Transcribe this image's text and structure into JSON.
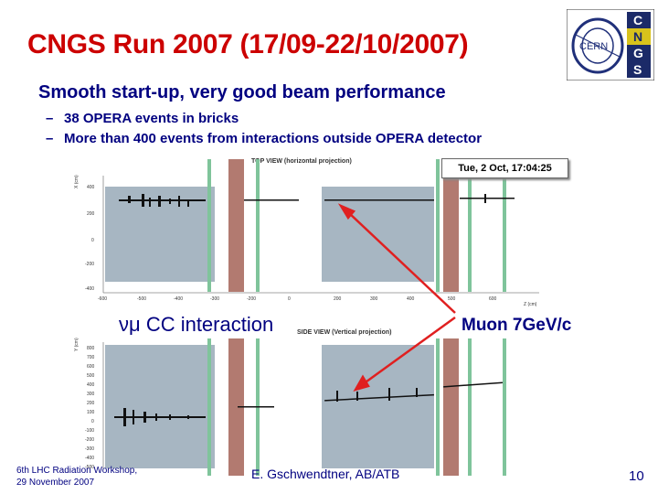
{
  "slide": {
    "title": "CNGS Run 2007 (17/09-22/10/2007)",
    "subtitle": "Smooth start-up, very good beam performance",
    "bullets": [
      "38 OPERA events in bricks",
      "More than 400 events from interactions outside OPERA detector"
    ],
    "bullet_dash": "–",
    "logo": {
      "text": "CERN",
      "letters": [
        "C",
        "N",
        "G",
        "S"
      ]
    }
  },
  "figure": {
    "timestamp": "Tue, 2 Oct, 17:04:25",
    "top_panel_title": "TOP VIEW (horizontal projection)",
    "side_panel_title": "SIDE VIEW (Vertical projection)",
    "top_ylabel": "X (cm)",
    "side_ylabel": "Y (cm)",
    "xlabel": "Z (cm)",
    "top_yticks": [
      "400",
      "200",
      "0",
      "-200",
      "-400"
    ],
    "side_yticks": [
      "800",
      "700",
      "600",
      "500",
      "400",
      "300",
      "200",
      "100",
      "0",
      "-100",
      "-200",
      "-300",
      "-400",
      "-500"
    ],
    "xticks": [
      "-600",
      "-500",
      "-400",
      "-300",
      "-200",
      "0",
      "200",
      "300",
      "400",
      "500",
      "600"
    ],
    "label_cc_prefix": "νμ",
    "label_cc_text": "CC interaction",
    "label_muon": "Muon 7GeV/c",
    "colors": {
      "title": "#cc0000",
      "text": "#000080",
      "detector_bg": "#a7b6c2",
      "magnet": "#b27a70",
      "rpc": "#7fc49b",
      "arrow": "#e02020"
    }
  },
  "footer": {
    "workshop_line1": "6th LHC Radiation Workshop,",
    "workshop_line2": "29 November 2007",
    "author": "E. Gschwendtner, AB/ATB",
    "page_number": "10"
  }
}
